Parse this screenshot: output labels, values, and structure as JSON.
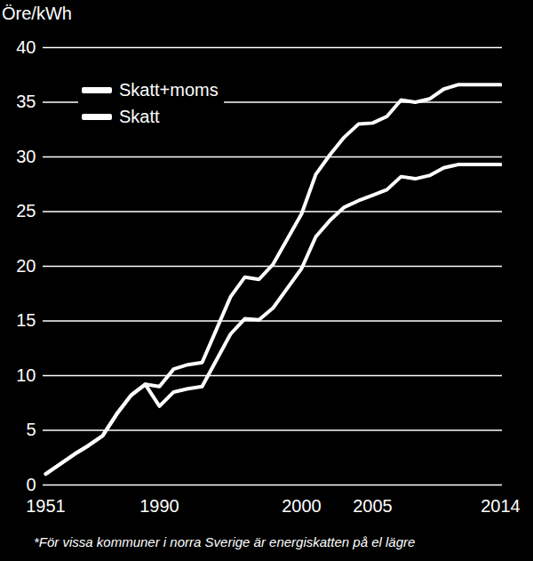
{
  "chart_data": {
    "type": "line",
    "y_label": "Öre/kWh",
    "caption": "*För vissa kommuner i norra Sverige är energiskatten på el lägre",
    "x": [
      "1951",
      null,
      null,
      null,
      null,
      null,
      null,
      null,
      "1990",
      null,
      null,
      null,
      null,
      null,
      null,
      null,
      null,
      null,
      "2000",
      null,
      null,
      null,
      null,
      "2005",
      null,
      null,
      null,
      null,
      null,
      null,
      null,
      null,
      "2014"
    ],
    "series": [
      {
        "name": "Skatt+moms",
        "color": "#ffffff",
        "values": [
          1.0,
          1.9,
          2.8,
          3.6,
          4.5,
          6.5,
          8.2,
          9.2,
          9.0,
          10.6,
          11.0,
          11.2,
          14.2,
          17.2,
          19.0,
          18.8,
          20.2,
          22.5,
          24.8,
          28.4,
          30.2,
          31.8,
          33.0,
          33.1,
          33.7,
          35.2,
          35.0,
          35.3,
          36.2,
          36.6,
          36.6,
          36.6,
          36.6
        ]
      },
      {
        "name": "Skatt",
        "color": "#ffffff",
        "values": [
          1.0,
          1.9,
          2.8,
          3.6,
          4.5,
          6.5,
          8.2,
          9.2,
          7.2,
          8.5,
          8.8,
          9.0,
          11.4,
          13.8,
          15.2,
          15.1,
          16.2,
          18.0,
          19.8,
          22.7,
          24.2,
          25.4,
          26.0,
          26.5,
          27.0,
          28.2,
          28.0,
          28.3,
          29.0,
          29.3,
          29.3,
          29.3,
          29.3
        ]
      }
    ],
    "ylim": [
      0,
      40
    ],
    "yticks": [
      0,
      5,
      10,
      15,
      20,
      25,
      30,
      35,
      40
    ],
    "grid": true,
    "legend": "top-left"
  }
}
